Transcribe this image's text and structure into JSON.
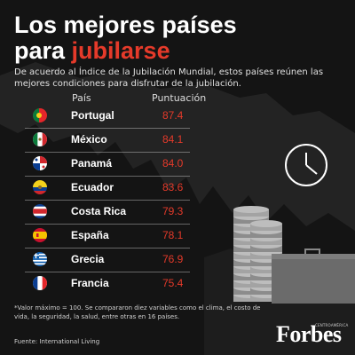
{
  "title": {
    "line1": "Los mejores países",
    "line2_prefix": "para ",
    "line2_accent": "jubilarse"
  },
  "intro": "De acuerdo al Índice de la Jubilación Mundial, estos países reúnen las mejores condiciones para disfrutar de la jubilación.",
  "table": {
    "headers": {
      "country": "País",
      "score": "Puntuación"
    },
    "rows": [
      {
        "country": "Portugal",
        "score": "87.4",
        "flag": "portugal-flag-icon"
      },
      {
        "country": "México",
        "score": "84.1",
        "flag": "mexico-flag-icon"
      },
      {
        "country": "Panamá",
        "score": "84.0",
        "flag": "panama-flag-icon"
      },
      {
        "country": "Ecuador",
        "score": "83.6",
        "flag": "ecuador-flag-icon"
      },
      {
        "country": "Costa Rica",
        "score": "79.3",
        "flag": "costa-rica-flag-icon"
      },
      {
        "country": "España",
        "score": "78.1",
        "flag": "spain-flag-icon"
      },
      {
        "country": "Grecia",
        "score": "76.9",
        "flag": "greece-flag-icon"
      },
      {
        "country": "Francia",
        "score": "75.4",
        "flag": "france-flag-icon"
      }
    ]
  },
  "footnote": "*Valor máximo = 100. Se compararon diez variables como el clima, el costo de vida, la seguridad, la salud, entre otras en 16 países.",
  "source": "Fuente: International Living",
  "logo": {
    "text": "Forbes",
    "sub": "CENTROAMÉRICA"
  },
  "colors": {
    "accent": "#e53a2a",
    "background": "#141414",
    "score": "#e53a2a"
  },
  "icons": [
    "clock-icon",
    "coin-stack-icon",
    "briefcase-icon",
    "map-background"
  ]
}
